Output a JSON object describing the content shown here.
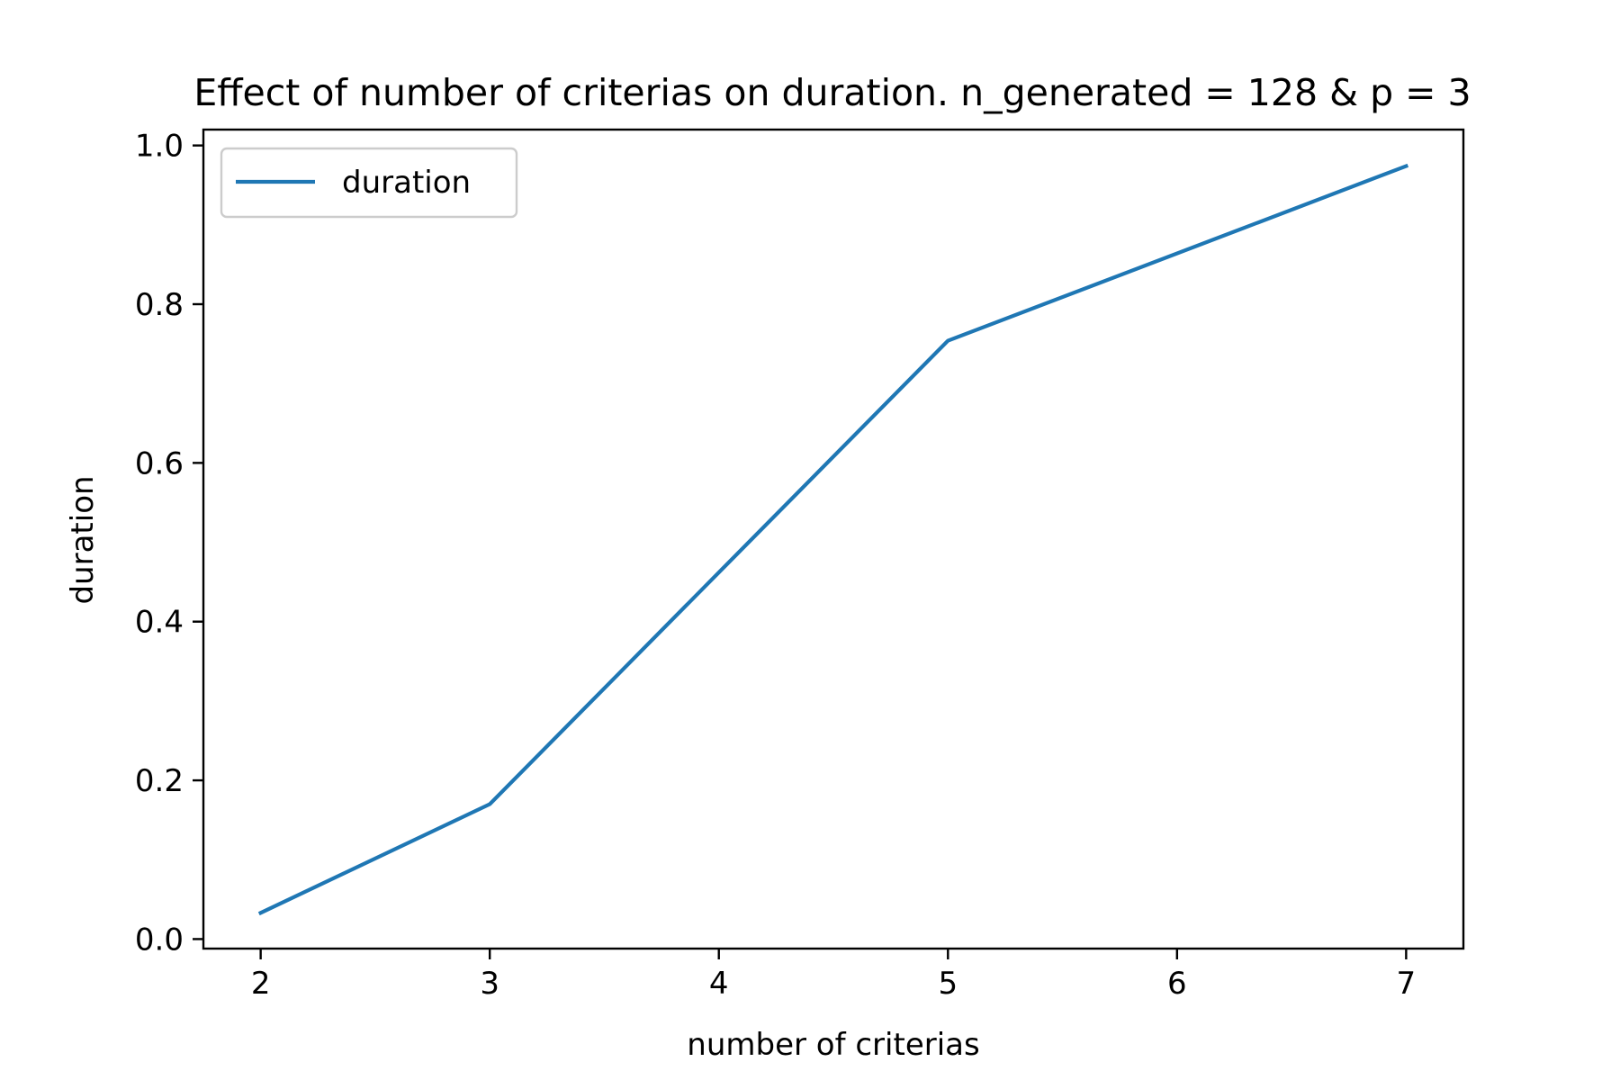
{
  "chart_data": {
    "type": "line",
    "title": "Effect of number of criterias on duration. n_generated = 128 & p = 3",
    "xlabel": "number of criterias",
    "ylabel": "duration",
    "x": [
      2,
      3,
      5,
      7
    ],
    "series": [
      {
        "name": "duration",
        "values": [
          0.033,
          0.17,
          0.754,
          0.974
        ],
        "color": "#1f77b4"
      }
    ],
    "xlim": [
      1.75,
      7.25
    ],
    "ylim": [
      -0.012,
      1.02
    ],
    "xticks": [
      2,
      3,
      4,
      5,
      6,
      7
    ],
    "yticks": [
      0.0,
      0.2,
      0.4,
      0.6,
      0.8,
      1.0
    ],
    "xtick_labels": [
      "2",
      "3",
      "4",
      "5",
      "6",
      "7"
    ],
    "ytick_labels": [
      "0.0",
      "0.2",
      "0.4",
      "0.6",
      "0.8",
      "1.0"
    ],
    "grid": false,
    "legend_position": "upper-left"
  }
}
